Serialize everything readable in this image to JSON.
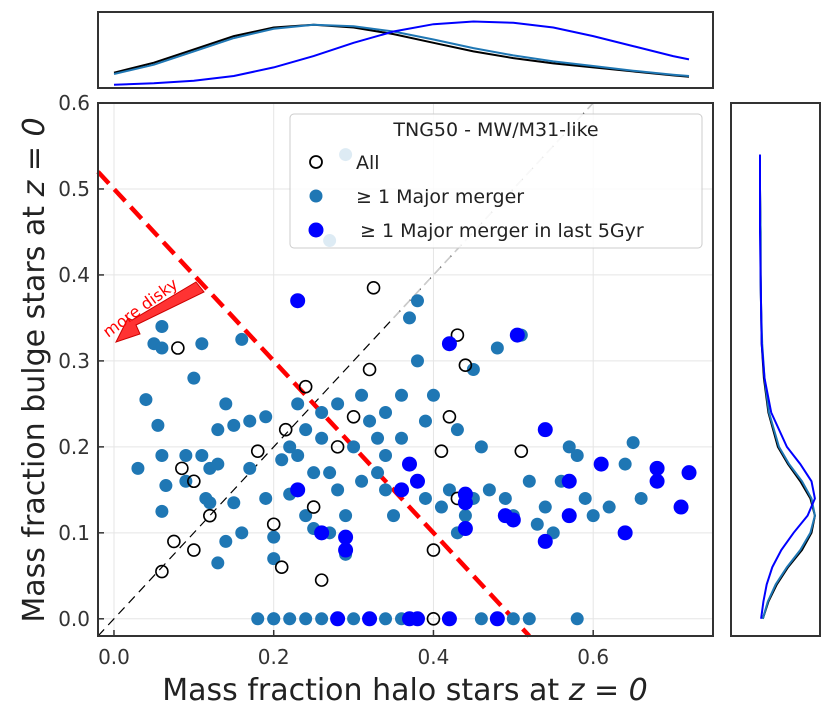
{
  "chart_data": {
    "type": "scatter",
    "xlabel": "Mass fraction halo stars at",
    "ylabel": "Mass fraction bulge stars at",
    "axis_suffix": "z = 0",
    "xlim": [
      -0.02,
      0.75
    ],
    "ylim": [
      -0.02,
      0.6
    ],
    "x_ticks": [
      0.0,
      0.2,
      0.4,
      0.6
    ],
    "y_ticks": [
      0.0,
      0.1,
      0.2,
      0.3,
      0.4,
      0.5,
      0.6
    ],
    "grid": true,
    "legend": {
      "title": "TNG50 - MW/M31-like",
      "placement": "top-right",
      "entries": [
        "All",
        "≥ 1 Major merger",
        "≥ 1 Major merger in last 5Gyr"
      ]
    },
    "annotation": {
      "text": "more disky",
      "color": "#ff0000"
    },
    "colors": {
      "all": "#000000",
      "major": "#1f77b4",
      "recent": "#0000ff",
      "divider": "#ff0000"
    },
    "series": [
      {
        "name": "All",
        "marker": "open-circle",
        "points": [
          [
            0.06,
            0.055
          ],
          [
            0.075,
            0.09
          ],
          [
            0.085,
            0.175
          ],
          [
            0.1,
            0.16
          ],
          [
            0.1,
            0.08
          ],
          [
            0.12,
            0.12
          ],
          [
            0.08,
            0.315
          ],
          [
            0.2,
            0.11
          ],
          [
            0.21,
            0.06
          ],
          [
            0.215,
            0.22
          ],
          [
            0.24,
            0.27
          ],
          [
            0.25,
            0.13
          ],
          [
            0.26,
            0.045
          ],
          [
            0.3,
            0.235
          ],
          [
            0.32,
            0.29
          ],
          [
            0.325,
            0.385
          ],
          [
            0.4,
            0.08
          ],
          [
            0.41,
            0.195
          ],
          [
            0.42,
            0.235
          ],
          [
            0.43,
            0.33
          ],
          [
            0.44,
            0.295
          ],
          [
            0.43,
            0.14
          ],
          [
            0.51,
            0.195
          ],
          [
            0.4,
            0.0
          ],
          [
            0.18,
            0.195
          ],
          [
            0.28,
            0.2
          ]
        ]
      },
      {
        "name": "≥ 1 Major merger",
        "marker": "filled-circle",
        "points": [
          [
            0.03,
            0.175
          ],
          [
            0.04,
            0.255
          ],
          [
            0.05,
            0.32
          ],
          [
            0.06,
            0.34
          ],
          [
            0.06,
            0.315
          ],
          [
            0.055,
            0.225
          ],
          [
            0.06,
            0.19
          ],
          [
            0.065,
            0.155
          ],
          [
            0.06,
            0.125
          ],
          [
            0.09,
            0.19
          ],
          [
            0.1,
            0.28
          ],
          [
            0.11,
            0.32
          ],
          [
            0.11,
            0.19
          ],
          [
            0.12,
            0.175
          ],
          [
            0.12,
            0.135
          ],
          [
            0.115,
            0.14
          ],
          [
            0.13,
            0.22
          ],
          [
            0.13,
            0.18
          ],
          [
            0.14,
            0.25
          ],
          [
            0.15,
            0.225
          ],
          [
            0.15,
            0.135
          ],
          [
            0.16,
            0.325
          ],
          [
            0.17,
            0.23
          ],
          [
            0.17,
            0.175
          ],
          [
            0.16,
            0.1
          ],
          [
            0.13,
            0.065
          ],
          [
            0.14,
            0.09
          ],
          [
            0.19,
            0.235
          ],
          [
            0.19,
            0.14
          ],
          [
            0.2,
            0.095
          ],
          [
            0.2,
            0.07
          ],
          [
            0.21,
            0.185
          ],
          [
            0.22,
            0.145
          ],
          [
            0.23,
            0.19
          ],
          [
            0.23,
            0.25
          ],
          [
            0.24,
            0.22
          ],
          [
            0.24,
            0.12
          ],
          [
            0.25,
            0.17
          ],
          [
            0.25,
            0.105
          ],
          [
            0.26,
            0.21
          ],
          [
            0.26,
            0.24
          ],
          [
            0.27,
            0.17
          ],
          [
            0.27,
            0.1
          ],
          [
            0.28,
            0.25
          ],
          [
            0.28,
            0.15
          ],
          [
            0.29,
            0.075
          ],
          [
            0.29,
            0.12
          ],
          [
            0.3,
            0.2
          ],
          [
            0.31,
            0.16
          ],
          [
            0.31,
            0.26
          ],
          [
            0.32,
            0.23
          ],
          [
            0.33,
            0.21
          ],
          [
            0.33,
            0.17
          ],
          [
            0.34,
            0.24
          ],
          [
            0.34,
            0.15
          ],
          [
            0.35,
            0.12
          ],
          [
            0.36,
            0.26
          ],
          [
            0.36,
            0.21
          ],
          [
            0.37,
            0.35
          ],
          [
            0.38,
            0.37
          ],
          [
            0.38,
            0.3
          ],
          [
            0.39,
            0.23
          ],
          [
            0.39,
            0.14
          ],
          [
            0.4,
            0.26
          ],
          [
            0.41,
            0.13
          ],
          [
            0.42,
            0.15
          ],
          [
            0.43,
            0.1
          ],
          [
            0.43,
            0.22
          ],
          [
            0.44,
            0.12
          ],
          [
            0.45,
            0.29
          ],
          [
            0.46,
            0.2
          ],
          [
            0.47,
            0.15
          ],
          [
            0.48,
            0.315
          ],
          [
            0.49,
            0.14
          ],
          [
            0.5,
            0.12
          ],
          [
            0.51,
            0.33
          ],
          [
            0.52,
            0.16
          ],
          [
            0.53,
            0.11
          ],
          [
            0.54,
            0.13
          ],
          [
            0.55,
            0.1
          ],
          [
            0.56,
            0.16
          ],
          [
            0.57,
            0.2
          ],
          [
            0.58,
            0.19
          ],
          [
            0.59,
            0.14
          ],
          [
            0.6,
            0.12
          ],
          [
            0.62,
            0.13
          ],
          [
            0.64,
            0.18
          ],
          [
            0.65,
            0.205
          ],
          [
            0.66,
            0.14
          ],
          [
            0.27,
            0.44
          ],
          [
            0.29,
            0.54
          ],
          [
            0.09,
            0.16
          ],
          [
            0.22,
            0.2
          ],
          [
            0.34,
            0.19
          ],
          [
            0.45,
            0.14
          ],
          [
            0.18,
            0.0
          ],
          [
            0.2,
            0.0
          ],
          [
            0.22,
            0.0
          ],
          [
            0.24,
            0.0
          ],
          [
            0.26,
            0.0
          ],
          [
            0.28,
            0.0
          ],
          [
            0.3,
            0.0
          ],
          [
            0.32,
            0.0
          ],
          [
            0.34,
            0.0
          ],
          [
            0.36,
            0.0
          ],
          [
            0.38,
            0.0
          ],
          [
            0.42,
            0.0
          ],
          [
            0.46,
            0.0
          ],
          [
            0.5,
            0.0
          ],
          [
            0.52,
            0.0
          ],
          [
            0.58,
            0.0
          ],
          [
            0.2,
            0.0
          ]
        ]
      },
      {
        "name": "≥ 1 Major merger in last 5Gyr",
        "marker": "filled-circle-large",
        "points": [
          [
            0.23,
            0.37
          ],
          [
            0.42,
            0.32
          ],
          [
            0.505,
            0.33
          ],
          [
            0.23,
            0.15
          ],
          [
            0.26,
            0.1
          ],
          [
            0.29,
            0.095
          ],
          [
            0.29,
            0.08
          ],
          [
            0.36,
            0.15
          ],
          [
            0.37,
            0.18
          ],
          [
            0.38,
            0.16
          ],
          [
            0.44,
            0.135
          ],
          [
            0.44,
            0.145
          ],
          [
            0.49,
            0.12
          ],
          [
            0.5,
            0.115
          ],
          [
            0.54,
            0.22
          ],
          [
            0.57,
            0.16
          ],
          [
            0.57,
            0.12
          ],
          [
            0.61,
            0.18
          ],
          [
            0.64,
            0.1
          ],
          [
            0.68,
            0.175
          ],
          [
            0.68,
            0.16
          ],
          [
            0.72,
            0.17
          ],
          [
            0.71,
            0.13
          ],
          [
            0.54,
            0.09
          ],
          [
            0.44,
            0.105
          ],
          [
            0.28,
            0.0
          ],
          [
            0.32,
            0.0
          ],
          [
            0.38,
            0.0
          ],
          [
            0.42,
            0.0
          ],
          [
            0.48,
            0.0
          ],
          [
            0.37,
            0.0
          ]
        ]
      }
    ],
    "reference_lines": [
      {
        "name": "one-to-one",
        "style": "dashed-black",
        "from": [
          -0.02,
          -0.02
        ],
        "to": [
          0.6,
          0.6
        ]
      },
      {
        "name": "one-to-one-light",
        "style": "dashed-gray",
        "from": [
          0.35,
          0.35
        ],
        "to": [
          0.6,
          0.6
        ]
      },
      {
        "name": "disky-divider",
        "style": "dashed-red",
        "from": [
          -0.02,
          0.52
        ],
        "to": [
          0.52,
          -0.02
        ]
      }
    ],
    "marginals": {
      "top": {
        "x": [
          0.0,
          0.05,
          0.1,
          0.15,
          0.2,
          0.25,
          0.3,
          0.35,
          0.4,
          0.45,
          0.5,
          0.55,
          0.6,
          0.65,
          0.7,
          0.72
        ],
        "all": [
          0.2,
          0.35,
          0.55,
          0.75,
          0.88,
          0.92,
          0.88,
          0.78,
          0.65,
          0.52,
          0.42,
          0.34,
          0.28,
          0.22,
          0.16,
          0.14
        ],
        "major": [
          0.18,
          0.32,
          0.52,
          0.72,
          0.86,
          0.92,
          0.9,
          0.82,
          0.7,
          0.57,
          0.46,
          0.37,
          0.3,
          0.23,
          0.17,
          0.15
        ],
        "recent": [
          0.02,
          0.04,
          0.08,
          0.15,
          0.28,
          0.45,
          0.65,
          0.82,
          0.93,
          0.97,
          0.95,
          0.88,
          0.75,
          0.6,
          0.45,
          0.4
        ]
      },
      "right": {
        "y": [
          0.0,
          0.02,
          0.04,
          0.06,
          0.08,
          0.1,
          0.12,
          0.14,
          0.16,
          0.18,
          0.2,
          0.24,
          0.28,
          0.32,
          0.36,
          0.4,
          0.45,
          0.5,
          0.54
        ],
        "all": [
          0.05,
          0.15,
          0.3,
          0.5,
          0.75,
          0.92,
          0.98,
          0.9,
          0.72,
          0.5,
          0.32,
          0.15,
          0.07,
          0.03,
          0.02,
          0.01,
          0.01,
          0.0,
          0.0
        ],
        "major": [
          0.05,
          0.14,
          0.28,
          0.48,
          0.72,
          0.9,
          0.98,
          0.92,
          0.75,
          0.52,
          0.34,
          0.16,
          0.08,
          0.04,
          0.02,
          0.01,
          0.01,
          0.0,
          0.0
        ],
        "recent": [
          0.02,
          0.06,
          0.12,
          0.22,
          0.38,
          0.6,
          0.85,
          0.98,
          0.92,
          0.72,
          0.48,
          0.2,
          0.08,
          0.03,
          0.02,
          0.01,
          0.0,
          0.0,
          0.0
        ]
      }
    }
  }
}
